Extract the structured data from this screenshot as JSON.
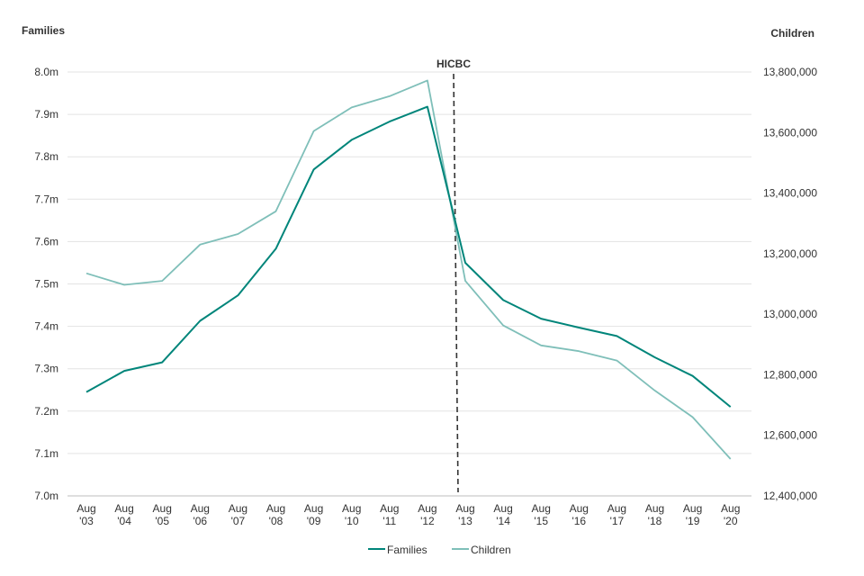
{
  "chart_data": {
    "type": "line",
    "title": "",
    "x": [
      "Aug '03",
      "Aug '04",
      "Aug '05",
      "Aug '06",
      "Aug '07",
      "Aug '08",
      "Aug '09",
      "Aug '10",
      "Aug '11",
      "Aug '12",
      "Aug '13",
      "Aug '14",
      "Aug '15",
      "Aug '16",
      "Aug '17",
      "Aug '18",
      "Aug '19",
      "Aug '20"
    ],
    "x_tick_labels": [
      [
        "Aug",
        "'03"
      ],
      [
        "Aug",
        "'04"
      ],
      [
        "Aug",
        "'05"
      ],
      [
        "Aug",
        "'06"
      ],
      [
        "Aug",
        "'07"
      ],
      [
        "Aug",
        "'08"
      ],
      [
        "Aug",
        "'09"
      ],
      [
        "Aug",
        "'10"
      ],
      [
        "Aug",
        "'11"
      ],
      [
        "Aug",
        "'12"
      ],
      [
        "Aug",
        "'13"
      ],
      [
        "Aug",
        "'14"
      ],
      [
        "Aug",
        "'15"
      ],
      [
        "Aug",
        "'16"
      ],
      [
        "Aug",
        "'17"
      ],
      [
        "Aug",
        "'18"
      ],
      [
        "Aug",
        "'19"
      ],
      [
        "Aug",
        "'20"
      ]
    ],
    "y_left": {
      "label": "Families",
      "ylim": [
        7.0,
        8.0
      ],
      "ticks": [
        7.0,
        7.1,
        7.2,
        7.3,
        7.4,
        7.5,
        7.6,
        7.7,
        7.8,
        7.9,
        8.0
      ],
      "tick_labels": [
        "7.0m",
        "7.1m",
        "7.2m",
        "7.3m",
        "7.4m",
        "7.5m",
        "7.6m",
        "7.7m",
        "7.8m",
        "7.9m",
        "8.0m"
      ]
    },
    "y_right": {
      "label": "Children",
      "ylim": [
        12400000,
        13800000
      ],
      "ticks": [
        12400000,
        12600000,
        12800000,
        13000000,
        13200000,
        13400000,
        13600000,
        13800000
      ],
      "tick_labels": [
        "12,400,000",
        "12,600,000",
        "12,800,000",
        "13,000,000",
        "13,200,000",
        "13,400,000",
        "13,600,000",
        "13,800,000"
      ]
    },
    "series": [
      {
        "name": "Families",
        "axis": "left",
        "color": "#00857a",
        "values": [
          7.245,
          7.295,
          7.315,
          7.413,
          7.473,
          7.583,
          7.77,
          7.84,
          7.883,
          7.918,
          7.55,
          7.462,
          7.418,
          7.397,
          7.377,
          7.327,
          7.283,
          7.21
        ]
      },
      {
        "name": "Children",
        "axis": "right",
        "color": "#7fbfb9",
        "values": [
          13135000,
          13097000,
          13110000,
          13230000,
          13265000,
          13340000,
          13605000,
          13683000,
          13720000,
          13772000,
          13110000,
          12963000,
          12897000,
          12878000,
          12847000,
          12748000,
          12660000,
          12522000
        ]
      }
    ],
    "annotations": [
      {
        "text": "HICBC",
        "x": "Aug '13",
        "style": "dashed-vertical-line"
      }
    ],
    "grid": true,
    "legend": "bottom-center"
  }
}
